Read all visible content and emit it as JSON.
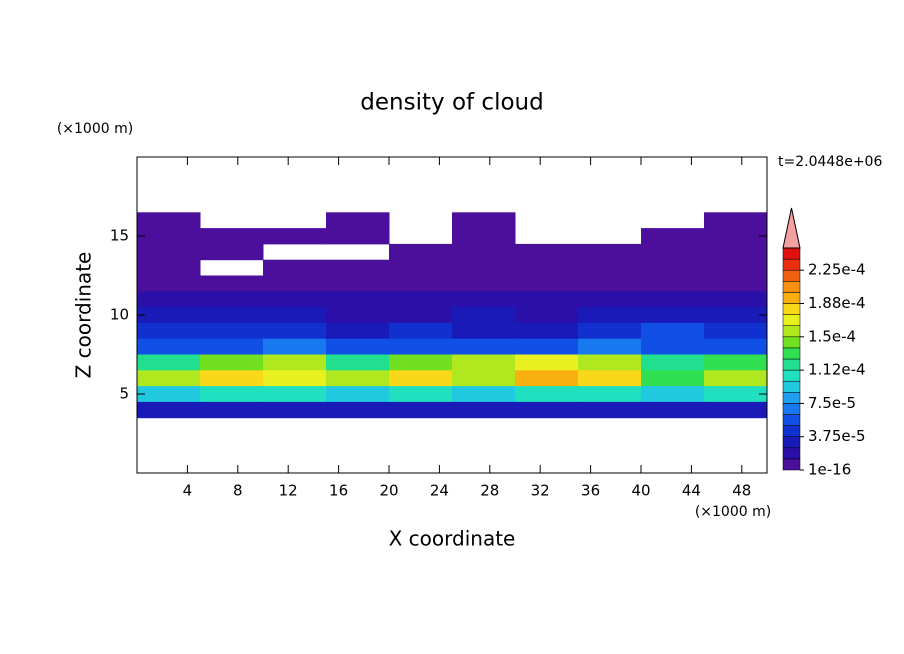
{
  "chart_data": {
    "type": "contour",
    "title": "density of cloud",
    "xlabel": "X coordinate",
    "ylabel": "Z coordinate",
    "x_unit": "(×1000 m)",
    "y_unit": "(×1000 m)",
    "annotation": "t=2.0448e+06",
    "xlim": [
      0,
      50
    ],
    "ylim": [
      0,
      20
    ],
    "xticks": [
      4,
      8,
      12,
      16,
      20,
      24,
      28,
      32,
      36,
      40,
      44,
      48
    ],
    "yticks": [
      5,
      10,
      15
    ],
    "x": [
      2.5,
      7.5,
      12.5,
      17.5,
      22.5,
      27.5,
      32.5,
      37.5,
      42.5,
      47.5
    ],
    "z": [
      16,
      15,
      14,
      13,
      12,
      11,
      10,
      9,
      8,
      7,
      6,
      5,
      4
    ],
    "values": [
      [
        3e-06,
        0,
        0,
        3e-06,
        0,
        3e-06,
        0,
        0,
        0,
        3e-06
      ],
      [
        3e-06,
        3e-06,
        3e-06,
        3e-06,
        0,
        3e-06,
        0,
        0,
        3e-06,
        3e-06
      ],
      [
        3e-06,
        3e-06,
        0,
        0,
        3e-06,
        3e-06,
        3e-06,
        3e-06,
        3e-06,
        3e-06
      ],
      [
        3e-06,
        0,
        3e-06,
        3e-06,
        3e-06,
        3e-06,
        3e-06,
        3e-06,
        3e-06,
        3e-06
      ],
      [
        5e-06,
        3e-06,
        5e-06,
        5e-06,
        5e-06,
        8e-06,
        1e-05,
        8e-06,
        5e-06,
        5e-06
      ],
      [
        1.5e-05,
        1.3e-05,
        1.5e-05,
        1.3e-05,
        1.5e-05,
        1.8e-05,
        2e-05,
        1.5e-05,
        1.5e-05,
        1.3e-05
      ],
      [
        3e-05,
        2.5e-05,
        2.5e-05,
        2e-05,
        1.8e-05,
        2.5e-05,
        2e-05,
        3e-05,
        2.5e-05,
        2.5e-05
      ],
      [
        4e-05,
        4.5e-05,
        4e-05,
        3.5e-05,
        4e-05,
        3e-05,
        3.5e-05,
        4e-05,
        5e-05,
        4e-05
      ],
      [
        6e-05,
        6e-05,
        6.5e-05,
        5.5e-05,
        5.5e-05,
        5.5e-05,
        6e-05,
        6.5e-05,
        6e-05,
        6e-05
      ],
      [
        0.00012,
        0.00014,
        0.00016,
        0.00012,
        0.00014,
        0.00015,
        0.00017,
        0.00016,
        0.00012,
        0.00013
      ],
      [
        0.00015,
        0.00018,
        0.00017,
        0.00016,
        0.00018,
        0.00016,
        0.00019,
        0.00018,
        0.00013,
        0.00016
      ],
      [
        9e-05,
        0.0001,
        0.0001,
        9e-05,
        0.0001,
        9e-05,
        0.00011,
        0.0001,
        9e-05,
        0.0001
      ],
      [
        3e-05,
        3e-05,
        3e-05,
        3e-05,
        3e-05,
        3e-05,
        3e-05,
        3e-05,
        3e-05,
        3e-05
      ]
    ],
    "levels": [
      1e-16,
      1.25e-05,
      2.5e-05,
      3.75e-05,
      5e-05,
      6.25e-05,
      7.5e-05,
      8.75e-05,
      0.0001,
      0.0001125,
      0.000125,
      0.0001375,
      0.00015,
      0.0001625,
      0.000175,
      0.0001875,
      0.0002,
      0.0002125,
      0.000225,
      0.0002375,
      0.00025
    ],
    "colors": [
      "#4b0f9c",
      "#2a10a8",
      "#1a1ab8",
      "#1030d0",
      "#1050e6",
      "#1878f0",
      "#20a0f0",
      "#20c8e0",
      "#20e0c0",
      "#20e090",
      "#30e050",
      "#70e020",
      "#b0e820",
      "#e8f020",
      "#f8d818",
      "#f8b010",
      "#f89010",
      "#f06010",
      "#e83010",
      "#e01010",
      "#f4a0a0"
    ],
    "colorbar_ticks": [
      1e-16,
      {
        "value": 3.75e-05,
        "label": "3.75e-5"
      },
      {
        "value": 7.5e-05,
        "label": "7.5e-5"
      },
      {
        "value": 0.0001125,
        "label": "1.12e-4"
      },
      {
        "value": 0.00015,
        "label": "1.5e-4"
      },
      {
        "value": 0.0001875,
        "label": "1.88e-4"
      },
      {
        "value": 0.000225,
        "label": "2.25e-4"
      }
    ]
  }
}
